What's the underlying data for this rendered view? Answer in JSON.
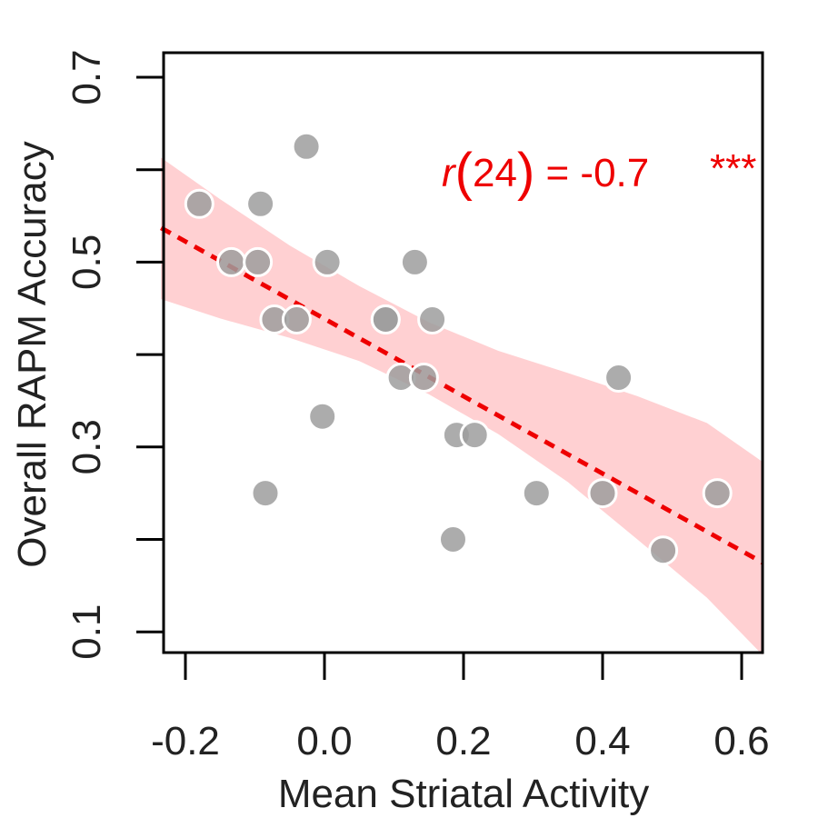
{
  "chart_data": {
    "type": "scatter",
    "title": "",
    "xlabel": "Mean Striatal Activity",
    "ylabel": "Overall RAPM Accuracy",
    "xlim": [
      -0.235,
      0.63
    ],
    "ylim": [
      0.05,
      0.75
    ],
    "x_ticks": [
      -0.2,
      0.0,
      0.2,
      0.4,
      0.6
    ],
    "x_tick_labels": [
      "-0.2",
      "0.0",
      "0.2",
      "0.4",
      "0.6"
    ],
    "y_ticks": [
      0.1,
      0.2,
      0.3,
      0.4,
      0.5,
      0.6,
      0.7
    ],
    "y_tick_labels": [
      "0.1",
      "",
      "0.3",
      "",
      "0.5",
      "",
      "0.7"
    ],
    "grid": false,
    "points": [
      {
        "x": -0.18,
        "y": 0.563
      },
      {
        "x": -0.134,
        "y": 0.5
      },
      {
        "x": -0.092,
        "y": 0.563
      },
      {
        "x": -0.096,
        "y": 0.5
      },
      {
        "x": -0.072,
        "y": 0.438
      },
      {
        "x": -0.085,
        "y": 0.25
      },
      {
        "x": -0.04,
        "y": 0.438
      },
      {
        "x": -0.026,
        "y": 0.625
      },
      {
        "x": 0.004,
        "y": 0.5
      },
      {
        "x": -0.003,
        "y": 0.333
      },
      {
        "x": 0.088,
        "y": 0.438
      },
      {
        "x": 0.088,
        "y": 0.438
      },
      {
        "x": 0.11,
        "y": 0.375
      },
      {
        "x": 0.13,
        "y": 0.5
      },
      {
        "x": 0.143,
        "y": 0.375
      },
      {
        "x": 0.155,
        "y": 0.438
      },
      {
        "x": 0.19,
        "y": 0.313
      },
      {
        "x": 0.216,
        "y": 0.313
      },
      {
        "x": 0.185,
        "y": 0.2
      },
      {
        "x": 0.305,
        "y": 0.25
      },
      {
        "x": 0.4,
        "y": 0.25
      },
      {
        "x": 0.423,
        "y": 0.375
      },
      {
        "x": 0.487,
        "y": 0.188
      },
      {
        "x": 0.565,
        "y": 0.25
      }
    ],
    "fit_line": {
      "x": [
        -0.235,
        0.63
      ],
      "y": [
        0.537,
        0.175
      ],
      "color": "#ee0000",
      "style": "dashed"
    },
    "confidence_band": {
      "x": [
        -0.235,
        -0.15,
        -0.05,
        0.05,
        0.15,
        0.25,
        0.35,
        0.45,
        0.55,
        0.63
      ],
      "upper": [
        0.613,
        0.568,
        0.518,
        0.474,
        0.435,
        0.404,
        0.38,
        0.355,
        0.326,
        0.284
      ],
      "lower": [
        0.46,
        0.439,
        0.418,
        0.393,
        0.357,
        0.314,
        0.262,
        0.2,
        0.137,
        0.075
      ],
      "color": "#ffd0d2"
    },
    "annotation": {
      "r_symbol": "r",
      "df": "24",
      "open_paren": "(",
      "close_paren": ")",
      "rest": " = -0.7",
      "stars": "***",
      "color": "#ee0000"
    },
    "colors": {
      "point_fill": "#9e9e9e",
      "point_stroke": "#ffffff",
      "axis": "#000000"
    }
  }
}
